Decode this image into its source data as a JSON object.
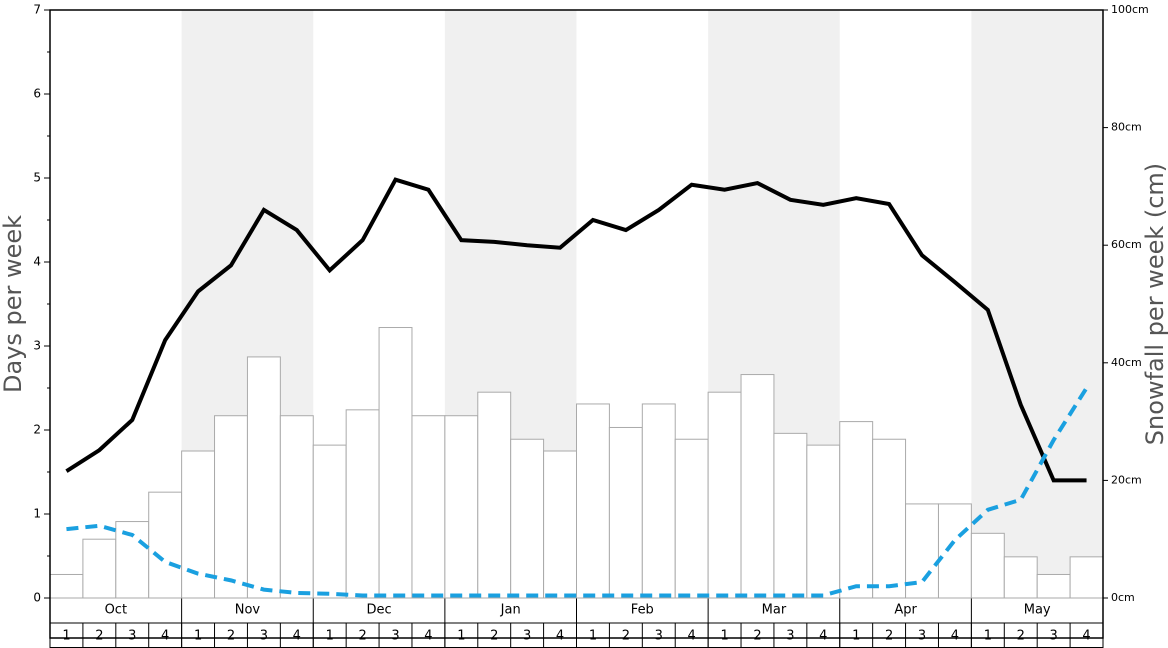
{
  "chart_data": {
    "type": "bar",
    "ylabel": "Days per week",
    "y2label": "Snowfall per week (cm)",
    "months": [
      "Oct",
      "Nov",
      "Dec",
      "Jan",
      "Feb",
      "Mar",
      "Apr",
      "May"
    ],
    "categories": [
      "1",
      "2",
      "3",
      "4",
      "1",
      "2",
      "3",
      "4",
      "1",
      "2",
      "3",
      "4",
      "1",
      "2",
      "3",
      "4",
      "1",
      "2",
      "3",
      "4",
      "1",
      "2",
      "3",
      "4",
      "1",
      "2",
      "3",
      "4",
      "1",
      "2",
      "3",
      "4"
    ],
    "ylim": [
      0,
      7
    ],
    "yticks": [
      0,
      1,
      2,
      3,
      4,
      5,
      6,
      7
    ],
    "y2lim": [
      0,
      100
    ],
    "y2ticks": [
      {
        "value": 0,
        "label": "0cm"
      },
      {
        "value": 20,
        "label": "20cm"
      },
      {
        "value": 40,
        "label": "40cm"
      },
      {
        "value": 60,
        "label": "60cm"
      },
      {
        "value": 80,
        "label": "80cm"
      },
      {
        "value": 100,
        "label": "100cm"
      }
    ],
    "shade_color": "#f0f0f0",
    "series": [
      {
        "type": "bar",
        "axis": "y2",
        "color": "#ffffff",
        "values": [
          4,
          10,
          13,
          18,
          25,
          31,
          41,
          31,
          26,
          32,
          46,
          31,
          31,
          35,
          27,
          25,
          33,
          29,
          33,
          27,
          35,
          38,
          28,
          26,
          30,
          27,
          16,
          16,
          11,
          7,
          4,
          7
        ]
      },
      {
        "type": "line",
        "color": "#000000",
        "dashed": false,
        "values": [
          1.51,
          1.76,
          2.12,
          3.07,
          3.65,
          3.96,
          4.62,
          4.38,
          3.9,
          4.26,
          4.98,
          4.86,
          4.26,
          4.24,
          4.2,
          4.17,
          4.5,
          4.38,
          4.62,
          4.92,
          4.86,
          4.94,
          4.74,
          4.68,
          4.76,
          4.69,
          4.08,
          3.76,
          3.43,
          2.3,
          1.4,
          1.4
        ]
      },
      {
        "type": "line",
        "color": "#1aa0e0",
        "dashed": true,
        "values": [
          0.82,
          0.86,
          0.75,
          0.43,
          0.29,
          0.21,
          0.1,
          0.06,
          0.05,
          0.03,
          0.03,
          0.03,
          0.03,
          0.03,
          0.03,
          0.03,
          0.03,
          0.03,
          0.03,
          0.03,
          0.03,
          0.03,
          0.03,
          0.03,
          0.14,
          0.14,
          0.19,
          0.69,
          1.05,
          1.17,
          1.88,
          2.5
        ]
      }
    ]
  }
}
